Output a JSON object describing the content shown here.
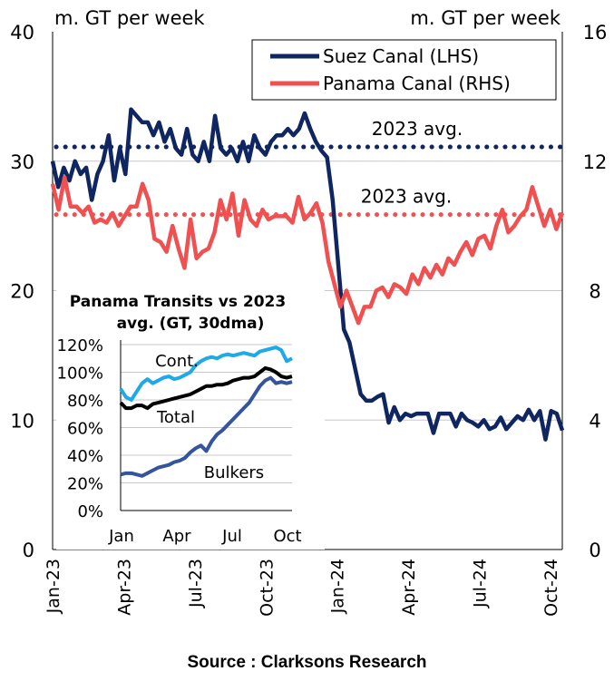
{
  "chart_data": [
    {
      "type": "line",
      "title": "",
      "ylabel_left": "m. GT per week",
      "ylabel_right": "m. GT per week",
      "ylim_left": [
        0,
        40
      ],
      "yticks_left": [
        "0",
        "10",
        "20",
        "30",
        "40"
      ],
      "ylim_right": [
        0,
        16
      ],
      "yticks_right": [
        "0",
        "4",
        "8",
        "12",
        "16"
      ],
      "xticks": [
        "Jan-23",
        "Apr-23",
        "Jul-23",
        "Oct-23",
        "Jan-24",
        "Apr-24",
        "Jul-24",
        "Oct-24"
      ],
      "grid": true,
      "legend_position": "top-right",
      "series": [
        {
          "name": "Suez Canal (LHS)",
          "axis": "left",
          "color": "#0f2660",
          "avg": 31.1,
          "avg_label": "2023 avg.",
          "values": [
            30,
            28,
            29.5,
            28.5,
            30,
            29,
            29.5,
            27,
            29,
            30,
            32,
            28.5,
            31,
            29,
            34,
            33.5,
            33,
            33,
            32,
            33,
            31.5,
            32.5,
            31,
            30.5,
            32.5,
            30.5,
            30,
            31.5,
            30,
            33.5,
            31,
            30.5,
            31,
            30,
            31.5,
            30,
            32,
            31,
            30.5,
            31.5,
            32,
            32,
            32.5,
            32,
            32.5,
            33.7,
            32.5,
            31.5,
            30.8,
            30.3,
            27,
            22,
            17,
            16,
            14,
            12,
            11.5,
            11.5,
            11.8,
            12,
            9.8,
            11,
            10,
            10.5,
            10.3,
            10.5,
            10.5,
            10.5,
            9,
            10.5,
            10.5,
            10.5,
            9.5,
            10.5,
            10,
            9.8,
            9.5,
            10,
            9.3,
            9.5,
            10.2,
            9.3,
            9.8,
            10.3,
            10,
            10.8,
            10,
            10.7,
            8.5,
            10.7,
            10.5,
            9.2
          ]
        },
        {
          "name": "Panama Canal (RHS)",
          "axis": "right",
          "color": "#f0504f",
          "avg": 10.35,
          "avg_label": "2023 avg.",
          "values": [
            11.3,
            10.5,
            11.5,
            10.6,
            10.6,
            10.4,
            10.6,
            10.1,
            10.2,
            10.1,
            10.4,
            10.0,
            10.3,
            10.6,
            10.6,
            11.3,
            10.8,
            9.6,
            9.5,
            9.2,
            10.0,
            9.3,
            8.7,
            10.2,
            9.0,
            9.2,
            9.3,
            9.8,
            10.8,
            10.2,
            11.0,
            9.7,
            10.8,
            10.2,
            10.0,
            10.5,
            10.2,
            10.3,
            10.3,
            10.3,
            10.1,
            10.9,
            10.2,
            10.4,
            10.7,
            10.1,
            8.9,
            8.2,
            7.5,
            8.0,
            7.5,
            7.0,
            7.5,
            7.5,
            8.0,
            8.1,
            7.8,
            8.2,
            8.1,
            7.9,
            8.5,
            8.2,
            8.7,
            8.4,
            8.8,
            8.5,
            9.0,
            8.8,
            9.2,
            9.5,
            9.1,
            9.6,
            9.7,
            9.3,
            10.0,
            10.5,
            9.8,
            10.0,
            10.3,
            10.5,
            11.2,
            10.6,
            10.0,
            10.5,
            9.9,
            10.4
          ]
        }
      ]
    },
    {
      "type": "line",
      "title": "Panama Transits vs 2023 avg. (GT, 30dma)",
      "ylim": [
        0,
        120
      ],
      "yticks": [
        "0%",
        "20%",
        "40%",
        "60%",
        "80%",
        "100%",
        "120%"
      ],
      "xticks": [
        "Jan",
        "Apr",
        "Jul",
        "Oct"
      ],
      "series": [
        {
          "name": "Cont.",
          "color": "#1ea9e8",
          "values": [
            88,
            82,
            80,
            86,
            92,
            95,
            92,
            94,
            96,
            97,
            95,
            96,
            98,
            100,
            105,
            108,
            110,
            111,
            110,
            112,
            113,
            112,
            113,
            114,
            113,
            112,
            115,
            116,
            117,
            118,
            116,
            108,
            110
          ]
        },
        {
          "name": "Total",
          "color": "#000000",
          "values": [
            78,
            74,
            74,
            76,
            76,
            74,
            77,
            78,
            79,
            80,
            81,
            82,
            83,
            84,
            86,
            88,
            90,
            90,
            91,
            91,
            92,
            94,
            95,
            96,
            96,
            97,
            100,
            103,
            102,
            100,
            97,
            96,
            97
          ]
        },
        {
          "name": "Bulkers",
          "color": "#35549e",
          "values": [
            26,
            27,
            27,
            26,
            25,
            27,
            29,
            31,
            32,
            33,
            35,
            36,
            38,
            42,
            45,
            47,
            43,
            50,
            55,
            58,
            62,
            66,
            70,
            74,
            78,
            84,
            90,
            94,
            96,
            92,
            93,
            92,
            93
          ]
        }
      ]
    }
  ],
  "source": "Source : Clarksons Research"
}
